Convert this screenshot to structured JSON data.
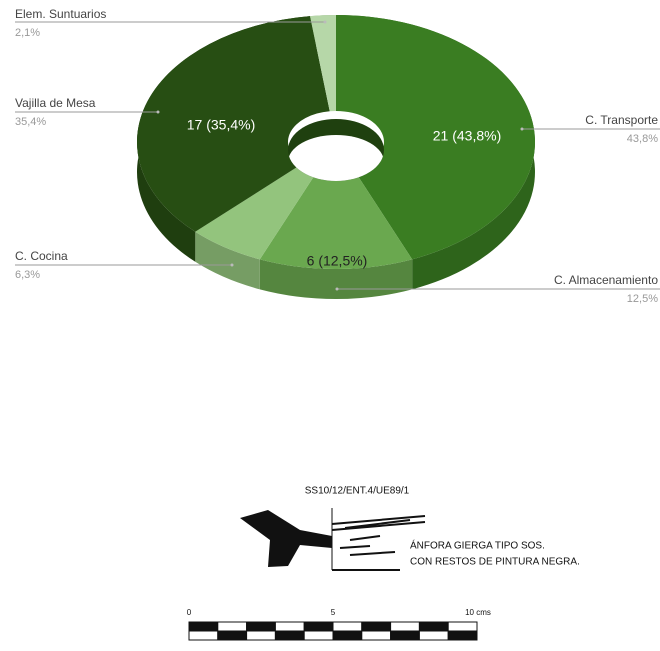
{
  "chart_data": {
    "type": "pie3d",
    "categories": [
      "C. Transporte",
      "C. Almacenamiento",
      "C. Cocina",
      "Vajilla de Mesa",
      "Elem. Suntuarios"
    ],
    "values": [
      21,
      6,
      3,
      17,
      1
    ],
    "value_labels": [
      "21 (43,8%)",
      "6 (12,5%)",
      null,
      "17 (35,4%)",
      null
    ],
    "percentages": [
      43.8,
      12.5,
      6.3,
      35.4,
      2.1
    ],
    "percentage_labels": [
      "43,8%",
      "12,5%",
      "6,3%",
      "35,4%",
      "2,1%"
    ],
    "colors": [
      "#3a7d22",
      "#6aa84f",
      "#93c47d",
      "#274e13",
      "#b6d7a8"
    ]
  },
  "figure": {
    "code": "SS10/12/ENT.4/UE89/1",
    "caption": [
      "ÁNFORA GIERGA TIPO SOS.",
      "CON RESTOS DE PINTURA NEGRA."
    ],
    "scale_labels": [
      "0",
      "5",
      "10 cms"
    ]
  }
}
